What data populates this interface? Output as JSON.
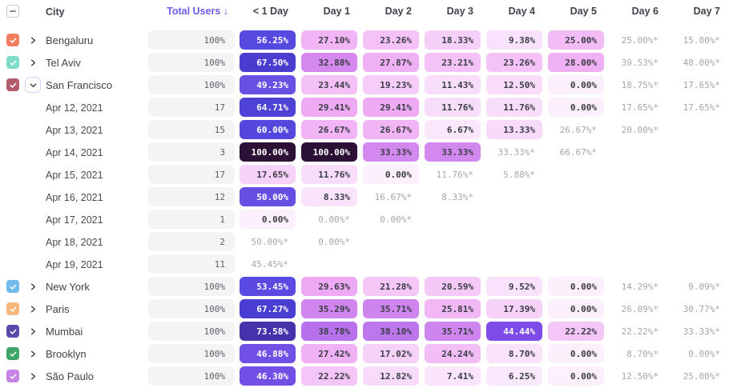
{
  "header": {
    "select_all_state": "indeterminate",
    "columns": {
      "city": "City",
      "total_users": "Total Users ↓",
      "days": [
        "< 1 Day",
        "Day 1",
        "Day 2",
        "Day 3",
        "Day 4",
        "Day 5",
        "Day 6",
        "Day 7"
      ]
    }
  },
  "palette": {
    "accent": "#695ce8",
    "pill_bg": "#f4f4f5",
    "text_dark": "#3a3d44",
    "text_gray": "#a3a7ae",
    "header_text": "#3f434a",
    "white_text_min": 44,
    "heatmap_stops": [
      [
        0,
        "#fcf0fd"
      ],
      [
        6,
        "#fae8fc"
      ],
      [
        12,
        "#f8ddfa"
      ],
      [
        18,
        "#f6d0f8"
      ],
      [
        23,
        "#f4c3f7"
      ],
      [
        27,
        "#f1b4f5"
      ],
      [
        30,
        "#eda7f3"
      ],
      [
        33,
        "#d488ef"
      ],
      [
        36,
        "#cf85ee"
      ],
      [
        40,
        "#ac68eb"
      ],
      [
        44,
        "#7f4be8"
      ],
      [
        48,
        "#6b52e5"
      ],
      [
        53,
        "#5c4ae1"
      ],
      [
        58,
        "#5348df"
      ],
      [
        63,
        "#5245db"
      ],
      [
        67,
        "#4a3dd2"
      ],
      [
        71,
        "#4836bc"
      ],
      [
        76,
        "#44309b"
      ],
      [
        86,
        "#371e60"
      ],
      [
        100,
        "#2d1036"
      ]
    ]
  },
  "rows": [
    {
      "type": "city",
      "label": "Bengaluru",
      "checked": true,
      "expanded": false,
      "checkbox_color": "#f37e5f",
      "total": "100%",
      "cells": [
        "56.25%",
        "27.10%",
        "23.26%",
        "18.33%",
        "9.38%",
        "25.00%",
        "25.00%*",
        "15.00%*"
      ]
    },
    {
      "type": "city",
      "label": "Tel Aviv",
      "checked": true,
      "expanded": false,
      "checkbox_color": "#7edcc8",
      "total": "100%",
      "cells": [
        "67.50%",
        "32.88%",
        "27.87%",
        "23.21%",
        "23.26%",
        "28.00%",
        "39.53%*",
        "48.00%*"
      ]
    },
    {
      "type": "city",
      "label": "San Francisco",
      "checked": true,
      "expanded": true,
      "checkbox_color": "#b25b6d",
      "total": "100%",
      "cells": [
        "49.23%",
        "23.44%",
        "19.23%",
        "11.43%",
        "12.50%",
        "0.00%",
        "18.75%*",
        "17.65%*"
      ]
    },
    {
      "type": "date",
      "label": "Apr 12, 2021",
      "total": "17",
      "cells": [
        "64.71%",
        "29.41%",
        "29.41%",
        "11.76%",
        "11.76%",
        "0.00%",
        "17.65%*",
        "17.65%*"
      ]
    },
    {
      "type": "date",
      "label": "Apr 13, 2021",
      "total": "15",
      "cells": [
        "60.00%",
        "26.67%",
        "26.67%",
        "6.67%",
        "13.33%",
        "26.67%*",
        "20.00%*",
        null
      ]
    },
    {
      "type": "date",
      "label": "Apr 14, 2021",
      "total": "3",
      "cells": [
        "100.00%",
        "100.00%",
        "33.33%",
        "33.33%",
        "33.33%*",
        "66.67%*",
        null,
        null
      ]
    },
    {
      "type": "date",
      "label": "Apr 15, 2021",
      "total": "17",
      "cells": [
        "17.65%",
        "11.76%",
        "0.00%",
        "11.76%*",
        "5.88%*",
        null,
        null,
        null
      ]
    },
    {
      "type": "date",
      "label": "Apr 16, 2021",
      "total": "12",
      "cells": [
        "50.00%",
        "8.33%",
        "16.67%*",
        "8.33%*",
        null,
        null,
        null,
        null
      ]
    },
    {
      "type": "date",
      "label": "Apr 17, 2021",
      "total": "1",
      "cells": [
        "0.00%",
        "0.00%*",
        "0.00%*",
        null,
        null,
        null,
        null,
        null
      ]
    },
    {
      "type": "date",
      "label": "Apr 18, 2021",
      "total": "2",
      "cells": [
        "50.00%*",
        "0.00%*",
        null,
        null,
        null,
        null,
        null,
        null
      ]
    },
    {
      "type": "date",
      "label": "Apr 19, 2021",
      "total": "11",
      "cells": [
        "45.45%*",
        null,
        null,
        null,
        null,
        null,
        null,
        null
      ]
    },
    {
      "type": "city",
      "label": "New York",
      "checked": true,
      "expanded": false,
      "checkbox_color": "#6fb9eb",
      "total": "100%",
      "cells": [
        "53.45%",
        "29.63%",
        "21.28%",
        "20.59%",
        "9.52%",
        "0.00%",
        "14.29%*",
        "9.09%*"
      ]
    },
    {
      "type": "city",
      "label": "Paris",
      "checked": true,
      "expanded": false,
      "checkbox_color": "#f6b77c",
      "total": "100%",
      "cells": [
        "67.27%",
        "35.29%",
        "35.71%",
        "25.81%",
        "17.39%",
        "0.00%",
        "26.09%*",
        "30.77%*"
      ]
    },
    {
      "type": "city",
      "label": "Mumbai",
      "checked": true,
      "expanded": false,
      "checkbox_color": "#5a4aac",
      "total": "100%",
      "cells": [
        "73.58%",
        "38.78%",
        "38.10%",
        "35.71%",
        "44.44%",
        "22.22%",
        "22.22%*",
        "33.33%*"
      ]
    },
    {
      "type": "city",
      "label": "Brooklyn",
      "checked": true,
      "expanded": false,
      "checkbox_color": "#3ea667",
      "total": "100%",
      "cells": [
        "46.88%",
        "27.42%",
        "17.02%",
        "24.24%",
        "8.70%",
        "0.00%",
        "8.70%*",
        "0.00%*"
      ]
    },
    {
      "type": "city",
      "label": "São Paulo",
      "checked": true,
      "expanded": false,
      "checkbox_color": "#c684e6",
      "total": "100%",
      "cells": [
        "46.30%",
        "22.22%",
        "12.82%",
        "7.41%",
        "6.25%",
        "0.00%",
        "12.50%*",
        "25.00%*"
      ]
    }
  ]
}
